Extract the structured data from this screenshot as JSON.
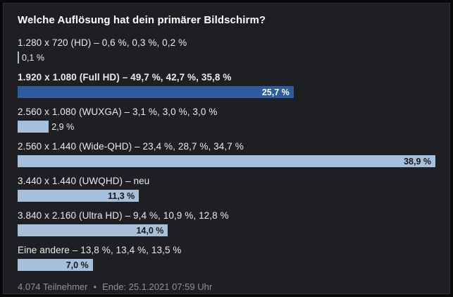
{
  "colors": {
    "panel_bg": "#1e1f23",
    "panel_border": "#2e3034",
    "title_color": "#ffffff",
    "label_color": "#e9eaec",
    "bar_default": "#a6bfdb",
    "bar_highlight": "#2e5c9e",
    "value_on_light": "#17181b",
    "value_on_highlight": "#ffffff",
    "value_outside": "#e9eaec",
    "footer_color": "#8f9195"
  },
  "chart_data": {
    "type": "bar",
    "orientation": "horizontal",
    "title": "Welche Auflösung hat dein primärer Bildschirm?",
    "unit": "%",
    "max_value": 38.9,
    "grid": false,
    "legend": false,
    "rows": [
      {
        "label": "1.280 x 720 (HD) – 0,6 %, 0,3 %, 0,2 %",
        "value": 0.1,
        "value_label": "0,1 %",
        "value_position": "outside",
        "highlight": false,
        "bold": false
      },
      {
        "label": "1.920 x 1.080 (Full HD) – 49,7 %, 42,7 %, 35,8 %",
        "value": 25.7,
        "value_label": "25,7 %",
        "value_position": "inside",
        "highlight": true,
        "bold": true
      },
      {
        "label": "2.560 x 1.080 (WUXGA) – 3,1 %, 3,0 %, 3,0 %",
        "value": 2.9,
        "value_label": "2,9 %",
        "value_position": "outside",
        "highlight": false,
        "bold": false
      },
      {
        "label": "2.560 x 1.440 (Wide-QHD) – 23,4 %, 28,7 %, 34,7 %",
        "value": 38.9,
        "value_label": "38,9 %",
        "value_position": "inside",
        "highlight": false,
        "bold": false
      },
      {
        "label": "3.440 x 1.440 (UWQHD) – neu",
        "value": 11.3,
        "value_label": "11,3 %",
        "value_position": "inside",
        "highlight": false,
        "bold": false
      },
      {
        "label": "3.840 x 2.160 (Ultra HD) – 9,4 %, 10,9 %, 12,8 %",
        "value": 14.0,
        "value_label": "14,0 %",
        "value_position": "inside",
        "highlight": false,
        "bold": false
      },
      {
        "label": "Eine andere – 13,8 %, 13,4 %, 13,5 %",
        "value": 7.0,
        "value_label": "7,0 %",
        "value_position": "inside",
        "highlight": false,
        "bold": false
      }
    ]
  },
  "footer": {
    "participants": "4.074 Teilnehmer",
    "separator": "•",
    "end": "Ende: 25.1.2021 07:59 Uhr"
  }
}
